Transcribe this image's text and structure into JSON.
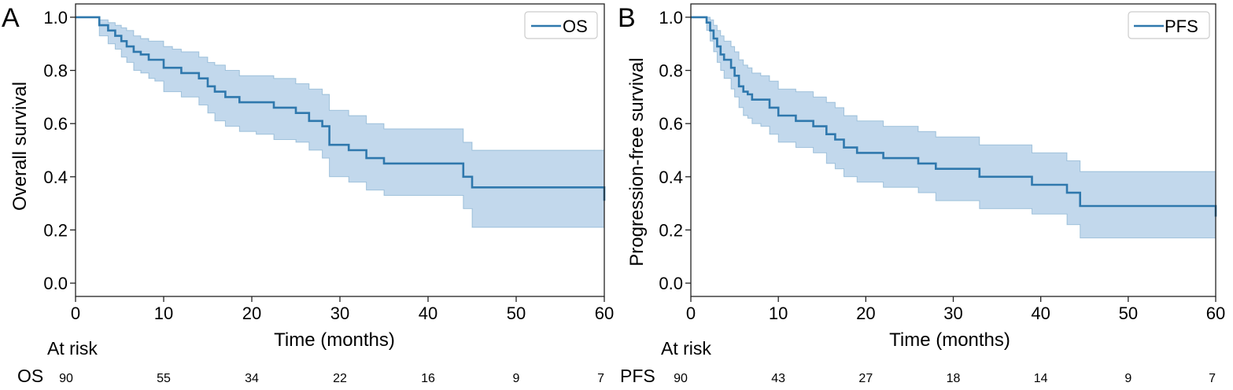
{
  "colors": {
    "line": "#2f78ad",
    "band": "#aecbe6",
    "axis": "#222222"
  },
  "chart_data": [
    {
      "type": "line",
      "panel_label": "A",
      "xlabel": "Time (months)",
      "ylabel": "Overall survival",
      "xlim": [
        0,
        60
      ],
      "ylim": [
        -0.05,
        1.05
      ],
      "x_ticks": [
        "0",
        "10",
        "20",
        "30",
        "40",
        "50",
        "60"
      ],
      "y_ticks": [
        "0.0",
        "0.2",
        "0.4",
        "0.6",
        "0.8",
        "1.0"
      ],
      "grid": false,
      "legend_position": "top-right",
      "series": [
        {
          "name": "OS",
          "step": true,
          "x": [
            0,
            2.7,
            3.7,
            4.5,
            5.2,
            5.8,
            6.6,
            7.4,
            8.3,
            9.0,
            10.0,
            11.0,
            12.0,
            14.0,
            15.0,
            15.8,
            17.0,
            18.6,
            20.5,
            22.5,
            25.0,
            26.5,
            28.0,
            28.8,
            31.0,
            33.0,
            35.0,
            44.0,
            45.0,
            60.0
          ],
          "y": [
            1.0,
            0.97,
            0.95,
            0.93,
            0.91,
            0.89,
            0.87,
            0.86,
            0.84,
            0.84,
            0.81,
            0.81,
            0.79,
            0.77,
            0.74,
            0.72,
            0.7,
            0.68,
            0.68,
            0.66,
            0.64,
            0.61,
            0.59,
            0.52,
            0.5,
            0.47,
            0.45,
            0.4,
            0.36,
            0.31
          ],
          "lower": [
            1.0,
            0.93,
            0.9,
            0.88,
            0.85,
            0.83,
            0.8,
            0.79,
            0.77,
            0.76,
            0.72,
            0.72,
            0.7,
            0.67,
            0.64,
            0.61,
            0.59,
            0.57,
            0.56,
            0.54,
            0.53,
            0.5,
            0.47,
            0.4,
            0.38,
            0.35,
            0.33,
            0.28,
            0.21,
            0.17
          ],
          "upper": [
            1.0,
            0.99,
            0.98,
            0.97,
            0.96,
            0.95,
            0.93,
            0.92,
            0.91,
            0.91,
            0.89,
            0.88,
            0.87,
            0.85,
            0.83,
            0.82,
            0.8,
            0.78,
            0.78,
            0.77,
            0.75,
            0.73,
            0.71,
            0.65,
            0.63,
            0.6,
            0.58,
            0.53,
            0.5,
            0.46
          ]
        }
      ],
      "at_risk": {
        "title": "At risk",
        "label": "OS",
        "times": [
          0,
          10,
          20,
          30,
          40,
          50,
          60
        ],
        "counts": [
          "90",
          "55",
          "34",
          "22",
          "16",
          "9",
          "7"
        ]
      }
    },
    {
      "type": "line",
      "panel_label": "B",
      "xlabel": "Time (months)",
      "ylabel": "Progression-free survival",
      "xlim": [
        0,
        60
      ],
      "ylim": [
        -0.05,
        1.05
      ],
      "x_ticks": [
        "0",
        "10",
        "20",
        "30",
        "40",
        "50",
        "60"
      ],
      "y_ticks": [
        "0.0",
        "0.2",
        "0.4",
        "0.6",
        "0.8",
        "1.0"
      ],
      "grid": false,
      "legend_position": "top-right",
      "series": [
        {
          "name": "PFS",
          "step": true,
          "x": [
            0,
            1.8,
            2.2,
            2.6,
            3.0,
            3.4,
            3.8,
            4.2,
            4.6,
            5.0,
            5.5,
            6.0,
            6.5,
            7.0,
            8.0,
            9.0,
            10.0,
            12.0,
            14.0,
            15.5,
            16.5,
            17.5,
            19.0,
            22.0,
            26.0,
            28.0,
            33.0,
            39.0,
            43.0,
            44.5,
            60.0
          ],
          "y": [
            1.0,
            0.98,
            0.95,
            0.92,
            0.89,
            0.86,
            0.84,
            0.84,
            0.81,
            0.78,
            0.74,
            0.72,
            0.71,
            0.69,
            0.69,
            0.66,
            0.63,
            0.61,
            0.59,
            0.56,
            0.54,
            0.51,
            0.49,
            0.47,
            0.45,
            0.43,
            0.4,
            0.37,
            0.34,
            0.29,
            0.25
          ],
          "lower": [
            1.0,
            0.95,
            0.91,
            0.87,
            0.83,
            0.8,
            0.77,
            0.77,
            0.73,
            0.7,
            0.66,
            0.63,
            0.62,
            0.6,
            0.59,
            0.56,
            0.53,
            0.51,
            0.49,
            0.45,
            0.43,
            0.4,
            0.38,
            0.36,
            0.34,
            0.31,
            0.28,
            0.26,
            0.22,
            0.17,
            0.13
          ],
          "upper": [
            1.0,
            1.0,
            0.99,
            0.97,
            0.95,
            0.93,
            0.91,
            0.91,
            0.89,
            0.87,
            0.84,
            0.82,
            0.81,
            0.79,
            0.78,
            0.76,
            0.73,
            0.72,
            0.7,
            0.68,
            0.66,
            0.63,
            0.61,
            0.59,
            0.57,
            0.55,
            0.52,
            0.49,
            0.46,
            0.42,
            0.4
          ]
        }
      ],
      "at_risk": {
        "title": "At risk",
        "label": "PFS",
        "times": [
          0,
          10,
          20,
          30,
          40,
          50,
          60
        ],
        "counts": [
          "90",
          "43",
          "27",
          "18",
          "14",
          "9",
          "7"
        ]
      }
    }
  ]
}
